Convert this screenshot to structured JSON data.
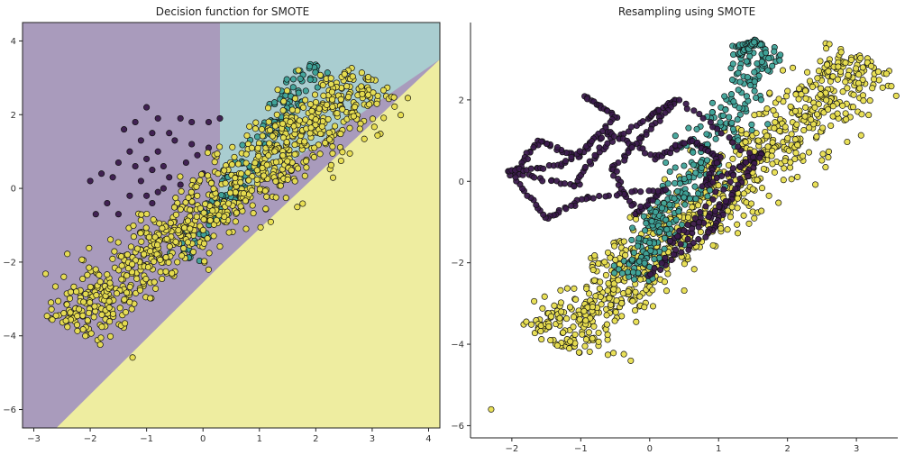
{
  "chart_data": [
    {
      "type": "scatter",
      "title": "Decision function for SMOTE",
      "xlim": [
        -3.2,
        4.2
      ],
      "ylim": [
        -6.5,
        4.5
      ],
      "xticks": [
        -3,
        -2,
        -1,
        0,
        1,
        2,
        3,
        4
      ],
      "yticks": [
        -6,
        -4,
        -2,
        0,
        2,
        4
      ],
      "xtick_labels": [
        "−3",
        "−2",
        "−1",
        "0",
        "1",
        "2",
        "3",
        "4"
      ],
      "ytick_labels": [
        "−6",
        "−4",
        "−2",
        "0",
        "2",
        "4"
      ],
      "background": "decision regions",
      "regions": [
        {
          "class": 0,
          "color": "#a99bbc",
          "description": "left region, x < ~0.3"
        },
        {
          "class": 1,
          "color": "#a9cdd0",
          "description": "upper-right wedge between x ~0.3 and the diagonal boundary"
        },
        {
          "class": 2,
          "color": "#eeeda0",
          "description": "lower-right region below diagonal boundary from (-2.6,-6.5) to (4.2,3.5)"
        }
      ],
      "series": [
        {
          "class": 0,
          "color": "#3b1a4d",
          "cluster": "scattered",
          "points": [
            [
              -1.0,
              2.2
            ],
            [
              -0.8,
              1.9
            ],
            [
              -1.2,
              1.8
            ],
            [
              -0.4,
              1.9
            ],
            [
              -0.2,
              1.8
            ],
            [
              0.1,
              1.8
            ],
            [
              0.3,
              1.9
            ],
            [
              -0.9,
              1.5
            ],
            [
              -0.6,
              1.5
            ],
            [
              -1.4,
              1.6
            ],
            [
              -1.1,
              1.3
            ],
            [
              -0.5,
              1.3
            ],
            [
              -0.2,
              1.2
            ],
            [
              0.1,
              1.1
            ],
            [
              -0.8,
              1.0
            ],
            [
              -1.3,
              1.0
            ],
            [
              -1.0,
              0.8
            ],
            [
              -0.7,
              0.6
            ],
            [
              -1.5,
              0.7
            ],
            [
              -0.3,
              0.7
            ],
            [
              -0.1,
              0.9
            ],
            [
              -1.2,
              0.6
            ],
            [
              -0.9,
              0.5
            ],
            [
              -0.6,
              0.3
            ],
            [
              -1.6,
              0.3
            ],
            [
              -1.8,
              0.4
            ],
            [
              -2.0,
              0.2
            ],
            [
              -1.1,
              0.2
            ],
            [
              -0.4,
              0.1
            ],
            [
              -0.8,
              -0.1
            ],
            [
              -1.3,
              -0.2
            ],
            [
              -1.7,
              -0.4
            ],
            [
              -0.2,
              -0.2
            ],
            [
              -0.9,
              -0.4
            ],
            [
              -1.5,
              -0.7
            ],
            [
              -0.5,
              -0.5
            ],
            [
              -0.7,
              0.0
            ],
            [
              0.0,
              0.4
            ],
            [
              -1.9,
              -0.7
            ],
            [
              -1.0,
              -0.2
            ]
          ]
        },
        {
          "class": 1,
          "color": "#3fa399",
          "cluster": "band",
          "start": [
            -0.3,
            -1.9
          ],
          "end": [
            1.95,
            3.4
          ],
          "spread": 0.15,
          "count": 160
        },
        {
          "class": 2,
          "color": "#e8de4f",
          "cluster": "band",
          "start": [
            -2.4,
            -3.8
          ],
          "end": [
            3.0,
            3.0
          ],
          "spread": 0.4,
          "count": 900
        }
      ]
    },
    {
      "type": "scatter",
      "title": "Resampling using SMOTE",
      "xlim": [
        -2.6,
        3.6
      ],
      "ylim": [
        -6.3,
        3.9
      ],
      "xticks": [
        -2,
        -1,
        0,
        1,
        2,
        3
      ],
      "yticks": [
        -6,
        -4,
        -2,
        0,
        2
      ],
      "xtick_labels": [
        "−2",
        "−1",
        "0",
        "1",
        "2",
        "3"
      ],
      "ytick_labels": [
        "−6",
        "−4",
        "−2",
        "0",
        "2"
      ],
      "series": [
        {
          "class": 2,
          "color": "#e8de4f",
          "cluster": "band",
          "start": [
            -1.4,
            -4.0
          ],
          "end": [
            3.2,
            3.0
          ],
          "spread": 0.35,
          "count": 900
        },
        {
          "class": 1,
          "color": "#3fa399",
          "cluster": "band",
          "start": [
            -0.3,
            -2.4
          ],
          "end": [
            1.8,
            3.4
          ],
          "spread": 0.18,
          "count": 320
        },
        {
          "class": 0,
          "color": "#3b1a4d",
          "cluster": "polyline",
          "vertices": [
            [
              -0.95,
              2.1
            ],
            [
              -0.5,
              1.6
            ],
            [
              -1.05,
              0.6
            ],
            [
              -1.6,
              1.0
            ],
            [
              -1.95,
              0.2
            ],
            [
              -1.1,
              -0.1
            ],
            [
              -0.7,
              0.8
            ],
            [
              0.0,
              1.6
            ],
            [
              0.4,
              2.0
            ],
            [
              -0.1,
              1.1
            ],
            [
              -0.55,
              0.3
            ],
            [
              -0.2,
              -0.8
            ],
            [
              0.2,
              -0.2
            ],
            [
              -0.9,
              -0.4
            ],
            [
              -1.5,
              -0.9
            ],
            [
              -2.05,
              0.25
            ],
            [
              -1.3,
              0.4
            ],
            [
              -0.6,
              1.2
            ],
            [
              0.1,
              0.6
            ],
            [
              0.6,
              1.0
            ],
            [
              1.0,
              0.6
            ],
            [
              0.8,
              -0.1
            ],
            [
              1.65,
              0.7
            ],
            [
              1.2,
              -0.3
            ],
            [
              0.9,
              -1.2
            ],
            [
              0.0,
              -2.3
            ],
            [
              1.1,
              -0.5
            ],
            [
              0.3,
              -1.5
            ],
            [
              1.5,
              0.6
            ],
            [
              0.5,
              1.9
            ]
          ]
        },
        {
          "class": 2,
          "color": "#e8de4f",
          "cluster": "single",
          "points": [
            [
              -2.3,
              -5.6
            ]
          ]
        },
        {
          "class": 1,
          "color": "#3fa399",
          "cluster": "polyline",
          "vertices": [
            [
              1.2,
              3.3
            ],
            [
              1.55,
              3.45
            ],
            [
              1.3,
              3.1
            ],
            [
              1.5,
              3.4
            ]
          ]
        }
      ]
    }
  ]
}
